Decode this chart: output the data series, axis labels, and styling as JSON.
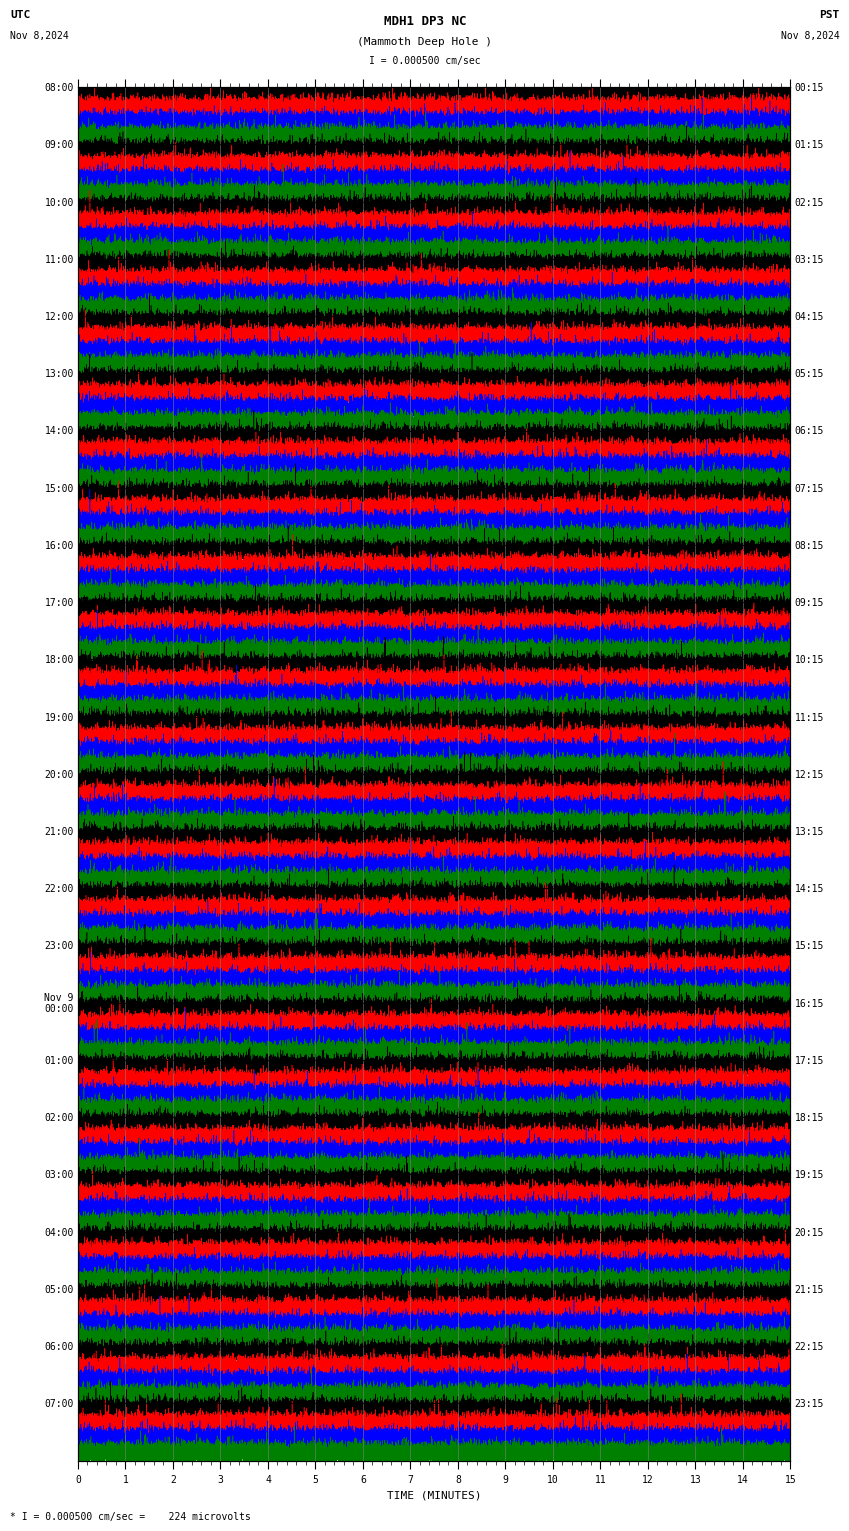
{
  "title_line1": "MDH1 DP3 NC",
  "title_line2": "(Mammoth Deep Hole )",
  "scale_label": "I = 0.000500 cm/sec",
  "utc_label": "UTC",
  "utc_date": "Nov 8,2024",
  "pst_label": "PST",
  "pst_date": "Nov 8,2024",
  "xlabel": "TIME (MINUTES)",
  "bottom_note": "* I = 0.000500 cm/sec =    224 microvolts",
  "left_times": [
    "08:00",
    "09:00",
    "10:00",
    "11:00",
    "12:00",
    "13:00",
    "14:00",
    "15:00",
    "16:00",
    "17:00",
    "18:00",
    "19:00",
    "20:00",
    "21:00",
    "22:00",
    "23:00",
    "Nov 9\n00:00",
    "01:00",
    "02:00",
    "03:00",
    "04:00",
    "05:00",
    "06:00",
    "07:00"
  ],
  "right_times": [
    "00:15",
    "01:15",
    "02:15",
    "03:15",
    "04:15",
    "05:15",
    "06:15",
    "07:15",
    "08:15",
    "09:15",
    "10:15",
    "11:15",
    "12:15",
    "13:15",
    "14:15",
    "15:15",
    "16:15",
    "17:15",
    "18:15",
    "19:15",
    "20:15",
    "21:15",
    "22:15",
    "23:15"
  ],
  "n_rows": 24,
  "n_minutes": 15,
  "sample_rate": 40,
  "colors": [
    "black",
    "red",
    "blue",
    "green"
  ],
  "bg_color": "white",
  "noise_amplitude": 0.06,
  "spike_probability": 0.0003,
  "spike_amplitude": 0.25
}
